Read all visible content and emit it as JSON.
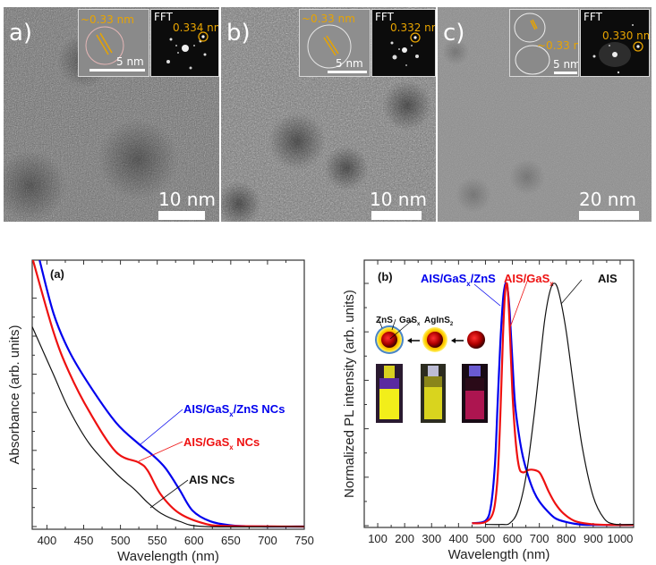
{
  "tem_panels": [
    {
      "label": "a)",
      "scale_bar": "10 nm",
      "inset": {
        "lattice": "~0.33 nm",
        "scale": "5 nm",
        "fft_title": "FFT",
        "fft_spacing": "0.334 nm"
      }
    },
    {
      "label": "b)",
      "scale_bar": "10 nm",
      "inset": {
        "lattice": "~0.33 nm",
        "scale": "5 nm",
        "fft_title": "FFT",
        "fft_spacing": "0.332 nm"
      }
    },
    {
      "label": "c)",
      "scale_bar": "20 nm",
      "inset": {
        "lattice": "~0.33 nm",
        "scale": "5 nm",
        "fft_title": "FFT",
        "fft_spacing": "0.330 nm"
      }
    }
  ],
  "colors": {
    "ais_gas_zns": "#0000ee",
    "ais_gas": "#ee1111",
    "ais": "#111111",
    "annotation_orange": "#e8a400"
  },
  "chart_data": [
    {
      "type": "line",
      "panel_label": "(a)",
      "title": "",
      "xlabel": "Wavelength (nm)",
      "ylabel": "Absorbance (arb. units)",
      "xlim": [
        380,
        750
      ],
      "ylim": [
        0,
        1
      ],
      "xticks": [
        400,
        450,
        500,
        550,
        600,
        650,
        700,
        750
      ],
      "yticks_labeled": false,
      "grid": false,
      "series": [
        {
          "name": "AIS/GaSx/ZnS NCs",
          "label_main": "AIS/GaS",
          "label_sub": "x",
          "label_tail": "/ZnS NCs",
          "color": "#0000ee",
          "x": [
            390,
            409,
            430,
            458,
            494,
            525,
            543,
            561,
            580,
            598,
            622,
            653,
            700,
            750
          ],
          "y": [
            1.0,
            0.8,
            0.66,
            0.53,
            0.39,
            0.31,
            0.27,
            0.22,
            0.14,
            0.06,
            0.02,
            0.004,
            0.0,
            0.0
          ]
        },
        {
          "name": "AIS/GaSx NCs",
          "label_main": "AIS/GaS",
          "label_sub": "x",
          "label_tail": " NCs",
          "color": "#ee1111",
          "x": [
            381,
            409,
            430,
            458,
            494,
            525,
            537,
            555,
            580,
            616,
            650,
            750
          ],
          "y": [
            1.0,
            0.73,
            0.58,
            0.43,
            0.28,
            0.24,
            0.21,
            0.12,
            0.05,
            0.01,
            0.002,
            0.0
          ]
        },
        {
          "name": "AIS NCs",
          "label_main": "AIS NCs",
          "label_sub": "",
          "label_tail": "",
          "color": "#111111",
          "x": [
            380,
            409,
            430,
            458,
            494,
            519,
            537,
            555,
            580,
            616,
            750
          ],
          "y": [
            0.75,
            0.57,
            0.44,
            0.31,
            0.2,
            0.14,
            0.09,
            0.05,
            0.02,
            0.0,
            0.0
          ]
        }
      ]
    },
    {
      "type": "line",
      "panel_label": "(b)",
      "title": "",
      "xlabel": "Wavelength (nm)",
      "ylabel": "Normalized PL intensity (arb. units)",
      "xlim": [
        50,
        1050
      ],
      "ylim": [
        0,
        1.0
      ],
      "xticks": [
        100,
        200,
        300,
        400,
        500,
        600,
        700,
        800,
        900,
        1000
      ],
      "yticks_labeled": false,
      "grid": false,
      "series": [
        {
          "name": "AIS/GaSx/ZnS",
          "label_main": "AIS/GaS",
          "label_sub": "x",
          "label_tail": "/ZnS",
          "color": "#0000ee",
          "x": [
            450,
            500,
            520,
            535,
            545,
            555,
            565,
            572,
            577,
            582,
            590,
            600,
            610,
            625,
            640,
            660,
            680,
            700,
            730,
            760,
            800,
            850,
            900,
            1050
          ],
          "y": [
            0.01,
            0.02,
            0.08,
            0.25,
            0.5,
            0.75,
            0.93,
            0.99,
            1.0,
            0.98,
            0.88,
            0.68,
            0.5,
            0.37,
            0.28,
            0.2,
            0.14,
            0.1,
            0.06,
            0.03,
            0.015,
            0.005,
            0.003,
            0.003
          ]
        },
        {
          "name": "AIS/GaSx",
          "label_main": "AIS/GaS",
          "label_sub": "x",
          "label_tail": "",
          "color": "#ee1111",
          "x": [
            450,
            500,
            530,
            545,
            555,
            565,
            572,
            578,
            583,
            590,
            600,
            612,
            625,
            640,
            660,
            680,
            700,
            715,
            735,
            760,
            790,
            830,
            880,
            950,
            1050
          ],
          "y": [
            0.01,
            0.015,
            0.06,
            0.2,
            0.45,
            0.78,
            0.95,
            1.0,
            0.97,
            0.82,
            0.55,
            0.35,
            0.24,
            0.22,
            0.23,
            0.23,
            0.22,
            0.19,
            0.14,
            0.09,
            0.05,
            0.02,
            0.008,
            0.003,
            0.003
          ]
        },
        {
          "name": "AIS",
          "label_main": "AIS",
          "label_sub": "",
          "label_tail": "",
          "color": "#111111",
          "x": [
            500,
            560,
            590,
            620,
            650,
            680,
            700,
            720,
            740,
            758,
            775,
            800,
            830,
            860,
            900,
            940,
            980,
            1050
          ],
          "y": [
            0.005,
            0.005,
            0.01,
            0.06,
            0.2,
            0.45,
            0.65,
            0.85,
            0.97,
            1.0,
            0.95,
            0.8,
            0.55,
            0.32,
            0.12,
            0.03,
            0.006,
            0.005
          ]
        }
      ],
      "inset": {
        "shell_labels": [
          "ZnS",
          "GaSx",
          "AgInS2"
        ],
        "shell_label_parts": [
          {
            "main": "ZnS",
            "sub": ""
          },
          {
            "main": "GaS",
            "sub": "x"
          },
          {
            "main": "AgInS",
            "sub": "2"
          }
        ],
        "vial_colors": [
          "#f2ee1a",
          "#d9d41e",
          "#c8185a"
        ]
      }
    }
  ]
}
